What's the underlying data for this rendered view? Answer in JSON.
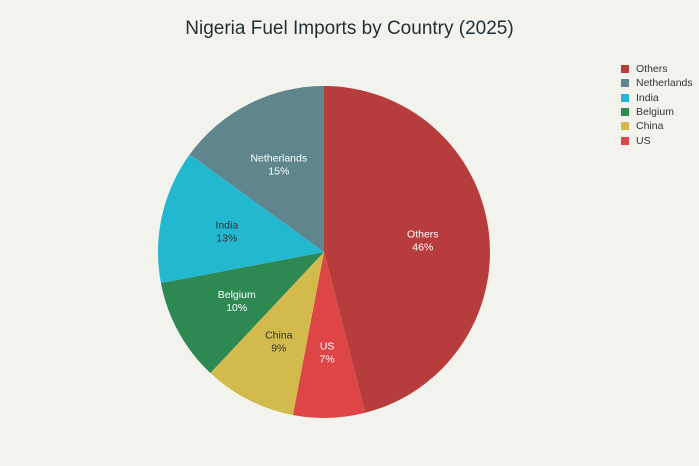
{
  "chart_data": {
    "type": "pie",
    "title": "Nigeria Fuel Imports by Country (2025)",
    "slices": [
      {
        "label": "Others",
        "value": 46,
        "display": "46%",
        "color": "#b73d3c",
        "text_color": "#ffffff"
      },
      {
        "label": "US",
        "value": 7,
        "display": "7%",
        "color": "#de4546",
        "text_color": "#ffffff"
      },
      {
        "label": "China",
        "value": 9,
        "display": "9%",
        "color": "#d2bb4c",
        "text_color": "#333333"
      },
      {
        "label": "Belgium",
        "value": 10,
        "display": "10%",
        "color": "#2d8852",
        "text_color": "#ffffff"
      },
      {
        "label": "India",
        "value": 13,
        "display": "13%",
        "color": "#22b8d0",
        "text_color": "#333333"
      },
      {
        "label": "Netherlands",
        "value": 15,
        "display": "15%",
        "color": "#5e868c",
        "text_color": "#ffffff"
      }
    ],
    "legend": {
      "position": "top-right",
      "order": [
        "Others",
        "Netherlands",
        "India",
        "Belgium",
        "China",
        "US"
      ]
    }
  }
}
